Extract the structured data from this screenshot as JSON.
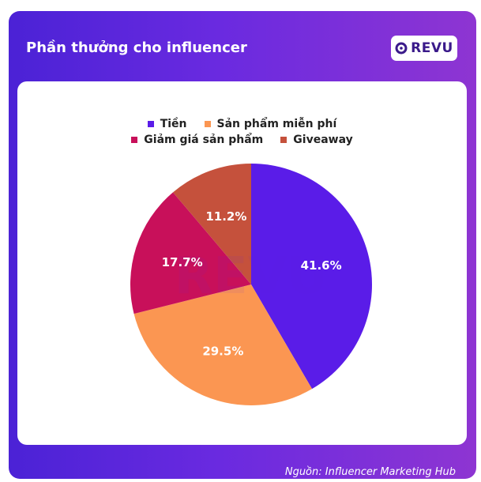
{
  "header": {
    "title": "Phần thưởng cho influencer",
    "logo_text": "REVU"
  },
  "footer": {
    "source": "Nguồn: Influencer Marketing Hub"
  },
  "watermark": "REVU",
  "colors": {
    "frame_start": "#4b22d6",
    "frame_end": "#8e35d2"
  },
  "chart_data": {
    "type": "pie",
    "title": "Phần thưởng cho influencer",
    "legend_position": "top",
    "slices": [
      {
        "label": "Tiền",
        "value": 41.6,
        "value_label": "41.6%",
        "color": "#5a1ce8"
      },
      {
        "label": "Sản phẩm miễn phí",
        "value": 29.5,
        "value_label": "29.5%",
        "color": "#fb9652"
      },
      {
        "label": "Giảm giá sản phẩm",
        "value": 17.7,
        "value_label": "17.7%",
        "color": "#c8105a"
      },
      {
        "label": "Giveaway",
        "value": 11.2,
        "value_label": "11.2%",
        "color": "#c5513c"
      }
    ]
  }
}
